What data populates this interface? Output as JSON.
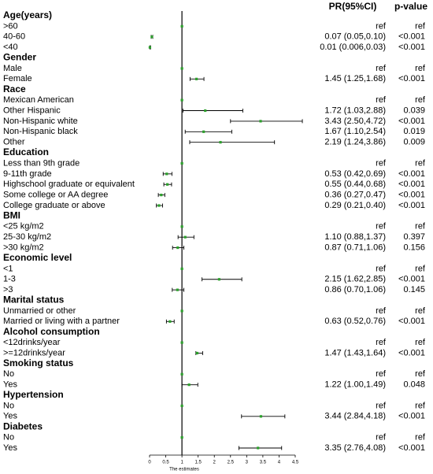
{
  "chart_data": {
    "type": "forest",
    "columns": [
      "PR(95%CI)",
      "p-value"
    ],
    "x_label": "The estimates",
    "xlim": [
      0,
      4.5
    ],
    "xticks": [
      0,
      0.5,
      1,
      1.5,
      2,
      2.5,
      3,
      3.5,
      4,
      4.5
    ],
    "reference_line": 1,
    "point_color": "#2ca02c",
    "ci_color": "#000000",
    "groups": [
      {
        "name": "Age(years)",
        "rows": [
          {
            "label": ">60",
            "pr": 1,
            "lower": null,
            "upper": null,
            "pr_label": "ref",
            "p": "ref"
          },
          {
            "label": "40-60",
            "pr": 0.07,
            "lower": 0.05,
            "upper": 0.1,
            "pr_label": "0.07 (0.05,0.10)",
            "p": "<0.001"
          },
          {
            "label": "<40",
            "pr": 0.01,
            "lower": 0.006,
            "upper": 0.03,
            "pr_label": "0.01 (0.006,0.03)",
            "p": "<0.001"
          }
        ]
      },
      {
        "name": "Gender",
        "rows": [
          {
            "label": "Male",
            "pr": 1,
            "lower": null,
            "upper": null,
            "pr_label": "ref",
            "p": "ref"
          },
          {
            "label": "Female",
            "pr": 1.45,
            "lower": 1.25,
            "upper": 1.68,
            "pr_label": "1.45 (1.25,1.68)",
            "p": "<0.001"
          }
        ]
      },
      {
        "name": "Race",
        "rows": [
          {
            "label": "Mexican American",
            "pr": 1,
            "lower": null,
            "upper": null,
            "pr_label": "ref",
            "p": "ref"
          },
          {
            "label": "Other Hispanic",
            "pr": 1.72,
            "lower": 1.03,
            "upper": 2.88,
            "pr_label": "1.72 (1.03,2.88)",
            "p": "0.039"
          },
          {
            "label": "Non-Hispanic white",
            "pr": 3.43,
            "lower": 2.5,
            "upper": 4.72,
            "pr_label": "3.43 (2.50,4.72)",
            "p": "<0.001"
          },
          {
            "label": "Non-Hispanic black",
            "pr": 1.67,
            "lower": 1.1,
            "upper": 2.54,
            "pr_label": "1.67 (1.10,2.54)",
            "p": "0.019"
          },
          {
            "label": "Other",
            "pr": 2.19,
            "lower": 1.24,
            "upper": 3.86,
            "pr_label": "2.19 (1.24,3.86)",
            "p": "0.009"
          }
        ]
      },
      {
        "name": "Education",
        "rows": [
          {
            "label": "Less than 9th grade",
            "pr": 1,
            "lower": null,
            "upper": null,
            "pr_label": "ref",
            "p": "ref"
          },
          {
            "label": "9-11th grade",
            "pr": 0.53,
            "lower": 0.42,
            "upper": 0.69,
            "pr_label": "0.53 (0.42,0.69)",
            "p": "<0.001"
          },
          {
            "label": "Highschool graduate or equivalent",
            "pr": 0.55,
            "lower": 0.44,
            "upper": 0.68,
            "pr_label": "0.55 (0.44,0.68)",
            "p": "<0.001"
          },
          {
            "label": "Some college or AA degree",
            "pr": 0.36,
            "lower": 0.27,
            "upper": 0.47,
            "pr_label": "0.36 (0.27,0.47)",
            "p": "<0.001"
          },
          {
            "label": "College graduate or above",
            "pr": 0.29,
            "lower": 0.21,
            "upper": 0.4,
            "pr_label": "0.29 (0.21,0.40)",
            "p": "<0.001"
          }
        ]
      },
      {
        "name": "BMI",
        "rows": [
          {
            "label": "<25 kg/m2",
            "pr": 1,
            "lower": null,
            "upper": null,
            "pr_label": "ref",
            "p": "ref"
          },
          {
            "label": "25-30 kg/m2",
            "pr": 1.1,
            "lower": 0.88,
            "upper": 1.37,
            "pr_label": "1.10 (0.88,1.37)",
            "p": "0.397"
          },
          {
            "label": ">30 kg/m2",
            "pr": 0.87,
            "lower": 0.71,
            "upper": 1.06,
            "pr_label": "0.87 (0.71,1.06)",
            "p": "0.156"
          }
        ]
      },
      {
        "name": "Economic level",
        "rows": [
          {
            "label": "<1",
            "pr": 1,
            "lower": null,
            "upper": null,
            "pr_label": "ref",
            "p": "ref"
          },
          {
            "label": "1-3",
            "pr": 2.15,
            "lower": 1.62,
            "upper": 2.85,
            "pr_label": "2.15 (1.62,2.85)",
            "p": "<0.001"
          },
          {
            "label": ">3",
            "pr": 0.86,
            "lower": 0.7,
            "upper": 1.06,
            "pr_label": "0.86 (0.70,1.06)",
            "p": "0.145"
          }
        ]
      },
      {
        "name": "Marital status",
        "rows": [
          {
            "label": "Unmarried or other",
            "pr": 1,
            "lower": null,
            "upper": null,
            "pr_label": "ref",
            "p": "ref"
          },
          {
            "label": "Married or living with a partner",
            "pr": 0.63,
            "lower": 0.52,
            "upper": 0.76,
            "pr_label": "0.63 (0.52,0.76)",
            "p": "<0.001"
          }
        ]
      },
      {
        "name": "Alcohol consumption",
        "rows": [
          {
            "label": "<12drinks/year",
            "pr": 1,
            "lower": null,
            "upper": null,
            "pr_label": "ref",
            "p": "ref"
          },
          {
            "label": ">=12drinks/year",
            "pr": 1.47,
            "lower": 1.43,
            "upper": 1.64,
            "pr_label": "1.47 (1.43,1.64)",
            "p": "<0.001"
          }
        ]
      },
      {
        "name": "Smoking status",
        "rows": [
          {
            "label": "No",
            "pr": 1,
            "lower": null,
            "upper": null,
            "pr_label": "ref",
            "p": "ref"
          },
          {
            "label": "Yes",
            "pr": 1.22,
            "lower": 1.0,
            "upper": 1.49,
            "pr_label": "1.22 (1.00,1.49)",
            "p": "0.048"
          }
        ]
      },
      {
        "name": "Hypertension",
        "rows": [
          {
            "label": "No",
            "pr": 1,
            "lower": null,
            "upper": null,
            "pr_label": "ref",
            "p": "ref"
          },
          {
            "label": "Yes",
            "pr": 3.44,
            "lower": 2.84,
            "upper": 4.18,
            "pr_label": "3.44 (2.84,4.18)",
            "p": "<0.001"
          }
        ]
      },
      {
        "name": "Diabetes",
        "rows": [
          {
            "label": "No",
            "pr": 1,
            "lower": null,
            "upper": null,
            "pr_label": "ref",
            "p": "ref"
          },
          {
            "label": "Yes",
            "pr": 3.35,
            "lower": 2.76,
            "upper": 4.08,
            "pr_label": "3.35 (2.76,4.08)",
            "p": "<0.001"
          }
        ]
      }
    ]
  }
}
